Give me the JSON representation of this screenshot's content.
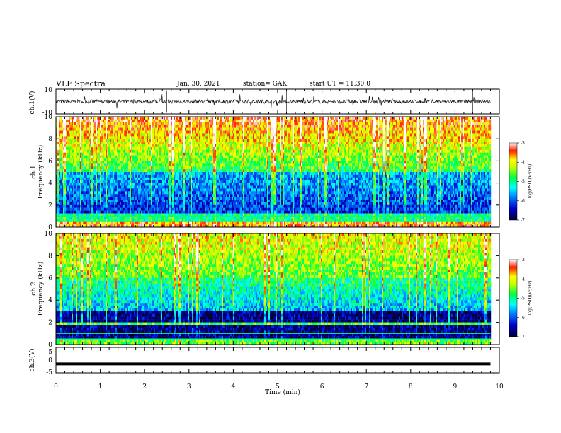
{
  "header": {
    "title": "VLF Spectra",
    "date": "Jan. 30, 2021",
    "station": "station= GAK",
    "start": "start UT = 11:30:0"
  },
  "colors": {
    "spectrogram_scale": [
      "#000033",
      "#000080",
      "#0000ff",
      "#00ffff",
      "#00ff00",
      "#ffff00",
      "#ff0000",
      "#ffffff"
    ],
    "trace": "#000000"
  },
  "chart_data": [
    {
      "type": "line",
      "panel": "ch1-waveform",
      "ylabel": "ch.1(V)",
      "ylim": [
        -10,
        10
      ],
      "yticks": [
        "10",
        "-10"
      ],
      "xlim": [
        0,
        10
      ],
      "baseline": 0,
      "description_values": {
        "typical_amplitude": 1.5,
        "spike_times_min": [
          0.95,
          2.05,
          2.5,
          4.85,
          5.2,
          9.4
        ]
      }
    },
    {
      "type": "heatmap",
      "panel": "ch1-spectrogram",
      "ylabel": "ch.1\nFrequency (kHz)",
      "ylim": [
        0,
        10
      ],
      "yticks": [
        "0",
        "2",
        "4",
        "6",
        "8",
        "10"
      ],
      "xlim": [
        0,
        10
      ],
      "data_end_min": 9.8,
      "colorbar": {
        "label": "log(PSD)(V²/Hz)",
        "range": [
          -7,
          -3
        ],
        "ticks": [
          "-3",
          "-4",
          "-5",
          "-6",
          "-7"
        ]
      }
    },
    {
      "type": "heatmap",
      "panel": "ch2-spectrogram",
      "ylabel": "ch.2\nFrequency (kHz)",
      "ylim": [
        0,
        10
      ],
      "yticks": [
        "0",
        "2",
        "4",
        "6",
        "8",
        "10"
      ],
      "xlim": [
        0,
        10
      ],
      "data_end_min": 9.8,
      "colorbar": {
        "label": "log(PSD)(V²/Hz)",
        "range": [
          -7,
          -3
        ],
        "ticks": [
          "-3",
          "-4",
          "-5",
          "-6",
          "-7"
        ]
      }
    },
    {
      "type": "line",
      "panel": "ch3-waveform",
      "ylabel": "ch.3(V)",
      "ylim": [
        -5,
        5
      ],
      "yticks": [
        "5",
        "0",
        "-5"
      ],
      "xlim": [
        0,
        10
      ],
      "constant_value": -1.5
    }
  ],
  "xaxis": {
    "label": "Time (min)",
    "ticks": [
      "0",
      "1",
      "2",
      "3",
      "4",
      "5",
      "6",
      "7",
      "8",
      "9",
      "10"
    ]
  }
}
